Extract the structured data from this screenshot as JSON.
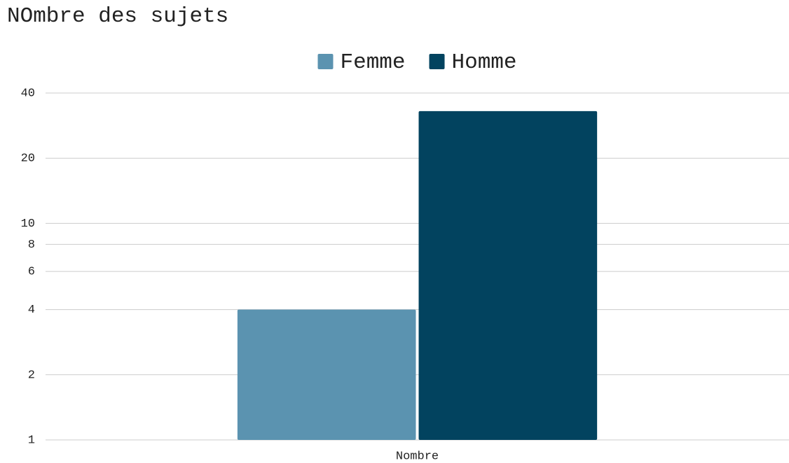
{
  "chart_data": {
    "type": "bar",
    "title": "NOmbre des sujets",
    "categories": [
      "Nombre"
    ],
    "series": [
      {
        "name": "Femme",
        "color": "#5b93b0",
        "values": [
          4
        ]
      },
      {
        "name": "Homme",
        "color": "#02435f",
        "values": [
          33
        ]
      }
    ],
    "log_scale": true,
    "ylim": [
      1,
      40
    ],
    "yticks": [
      1,
      2,
      4,
      6,
      8,
      10,
      20,
      40
    ],
    "grid": true,
    "legend": "top"
  }
}
